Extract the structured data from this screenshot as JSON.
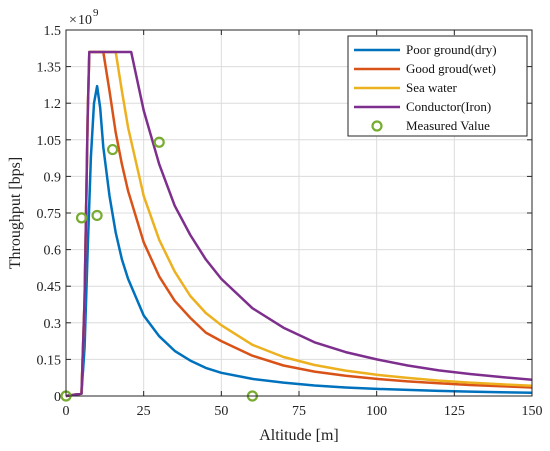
{
  "chart_data": {
    "type": "line",
    "title": "",
    "xlabel": "Altitude [m]",
    "ylabel": "Throughput [bps]",
    "y_exponent_base": "10",
    "y_exponent_power": "9",
    "xlim": [
      0,
      150
    ],
    "ylim": [
      0,
      1.5
    ],
    "xticks": [
      "0",
      "25",
      "50",
      "75",
      "100",
      "125",
      "150"
    ],
    "yticks": [
      "0",
      "0.15",
      "0.3",
      "0.45",
      "0.6",
      "0.75",
      "0.9",
      "1.05",
      "1.2",
      "1.35",
      "1.5"
    ],
    "grid": true,
    "legend_position": "top-right",
    "series": [
      {
        "name": "Poor ground(dry)",
        "color": "#0072BD",
        "points": [
          [
            0,
            0
          ],
          [
            5,
            0.01
          ],
          [
            6,
            0.2
          ],
          [
            7,
            0.6
          ],
          [
            8,
            0.98
          ],
          [
            9,
            1.2
          ],
          [
            10,
            1.27
          ],
          [
            11,
            1.18
          ],
          [
            12,
            1.02
          ],
          [
            14,
            0.82
          ],
          [
            16,
            0.67
          ],
          [
            18,
            0.56
          ],
          [
            20,
            0.48
          ],
          [
            25,
            0.33
          ],
          [
            30,
            0.245
          ],
          [
            35,
            0.185
          ],
          [
            40,
            0.145
          ],
          [
            45,
            0.115
          ],
          [
            50,
            0.095
          ],
          [
            60,
            0.07
          ],
          [
            70,
            0.055
          ],
          [
            80,
            0.043
          ],
          [
            90,
            0.035
          ],
          [
            100,
            0.029
          ],
          [
            110,
            0.025
          ],
          [
            120,
            0.021
          ],
          [
            130,
            0.018
          ],
          [
            140,
            0.015
          ],
          [
            150,
            0.013
          ]
        ]
      },
      {
        "name": "Good groud(wet)",
        "color": "#D95319",
        "points": [
          [
            0,
            0
          ],
          [
            5,
            0.01
          ],
          [
            6,
            0.4
          ],
          [
            7,
            1.15
          ],
          [
            7.5,
            1.41
          ],
          [
            12,
            1.41
          ],
          [
            14,
            1.25
          ],
          [
            16,
            1.08
          ],
          [
            18,
            0.95
          ],
          [
            20,
            0.84
          ],
          [
            25,
            0.63
          ],
          [
            30,
            0.49
          ],
          [
            35,
            0.39
          ],
          [
            40,
            0.32
          ],
          [
            45,
            0.26
          ],
          [
            50,
            0.225
          ],
          [
            60,
            0.165
          ],
          [
            70,
            0.125
          ],
          [
            80,
            0.1
          ],
          [
            90,
            0.083
          ],
          [
            100,
            0.07
          ],
          [
            110,
            0.06
          ],
          [
            120,
            0.052
          ],
          [
            130,
            0.045
          ],
          [
            140,
            0.04
          ],
          [
            150,
            0.035
          ]
        ]
      },
      {
        "name": "Sea water",
        "color": "#EDB120",
        "points": [
          [
            0,
            0
          ],
          [
            5,
            0.01
          ],
          [
            6,
            0.4
          ],
          [
            7,
            1.15
          ],
          [
            7.5,
            1.41
          ],
          [
            16,
            1.41
          ],
          [
            18,
            1.25
          ],
          [
            20,
            1.1
          ],
          [
            25,
            0.82
          ],
          [
            30,
            0.64
          ],
          [
            35,
            0.51
          ],
          [
            40,
            0.41
          ],
          [
            45,
            0.34
          ],
          [
            50,
            0.29
          ],
          [
            60,
            0.21
          ],
          [
            70,
            0.16
          ],
          [
            80,
            0.127
          ],
          [
            90,
            0.104
          ],
          [
            100,
            0.087
          ],
          [
            110,
            0.074
          ],
          [
            120,
            0.063
          ],
          [
            130,
            0.055
          ],
          [
            140,
            0.048
          ],
          [
            150,
            0.042
          ]
        ]
      },
      {
        "name": "Conductor(Iron)",
        "color": "#7E2F8E",
        "points": [
          [
            0,
            0
          ],
          [
            5,
            0.01
          ],
          [
            6,
            0.4
          ],
          [
            7,
            1.15
          ],
          [
            7.5,
            1.41
          ],
          [
            21,
            1.41
          ],
          [
            25,
            1.17
          ],
          [
            30,
            0.95
          ],
          [
            35,
            0.78
          ],
          [
            40,
            0.66
          ],
          [
            45,
            0.56
          ],
          [
            50,
            0.48
          ],
          [
            60,
            0.36
          ],
          [
            70,
            0.28
          ],
          [
            80,
            0.22
          ],
          [
            90,
            0.18
          ],
          [
            100,
            0.15
          ],
          [
            110,
            0.125
          ],
          [
            120,
            0.105
          ],
          [
            130,
            0.09
          ],
          [
            140,
            0.078
          ],
          [
            150,
            0.067
          ]
        ]
      },
      {
        "name": "Measured Value",
        "color": "#77AC30",
        "style": "markers",
        "points": [
          [
            0,
            0
          ],
          [
            5,
            0.73
          ],
          [
            10,
            0.74
          ],
          [
            15,
            1.01
          ],
          [
            30,
            1.04
          ],
          [
            60,
            0
          ]
        ]
      }
    ]
  }
}
